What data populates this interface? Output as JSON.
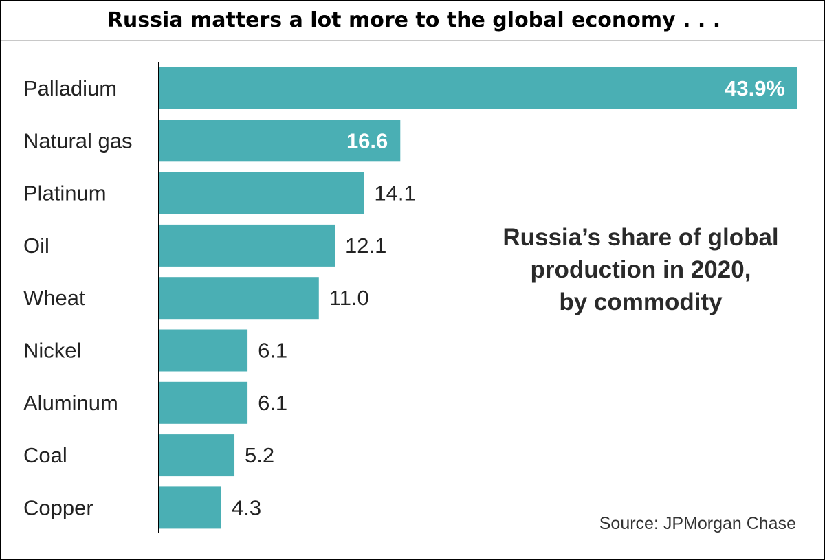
{
  "header": {
    "title": "Russia matters a lot more to the global economy . . ."
  },
  "chart_data": {
    "type": "bar",
    "orientation": "horizontal",
    "categories": [
      "Palladium",
      "Natural gas",
      "Platinum",
      "Oil",
      "Wheat",
      "Nickel",
      "Aluminum",
      "Coal",
      "Copper"
    ],
    "values": [
      43.9,
      16.6,
      14.1,
      12.1,
      11.0,
      6.1,
      6.1,
      5.2,
      4.3
    ],
    "value_labels": [
      "43.9%",
      "16.6",
      "14.1",
      "12.1",
      "11.0",
      "6.1",
      "6.1",
      "5.2",
      "4.3"
    ],
    "subtitle_lines": [
      "Russia’s share of global",
      "production in 2020,",
      "by commodity"
    ],
    "source": "Source: JPMorgan Chase",
    "xlim": [
      0,
      43.9
    ],
    "bar_color": "#4aafb4",
    "grid": false,
    "legend": "none"
  }
}
